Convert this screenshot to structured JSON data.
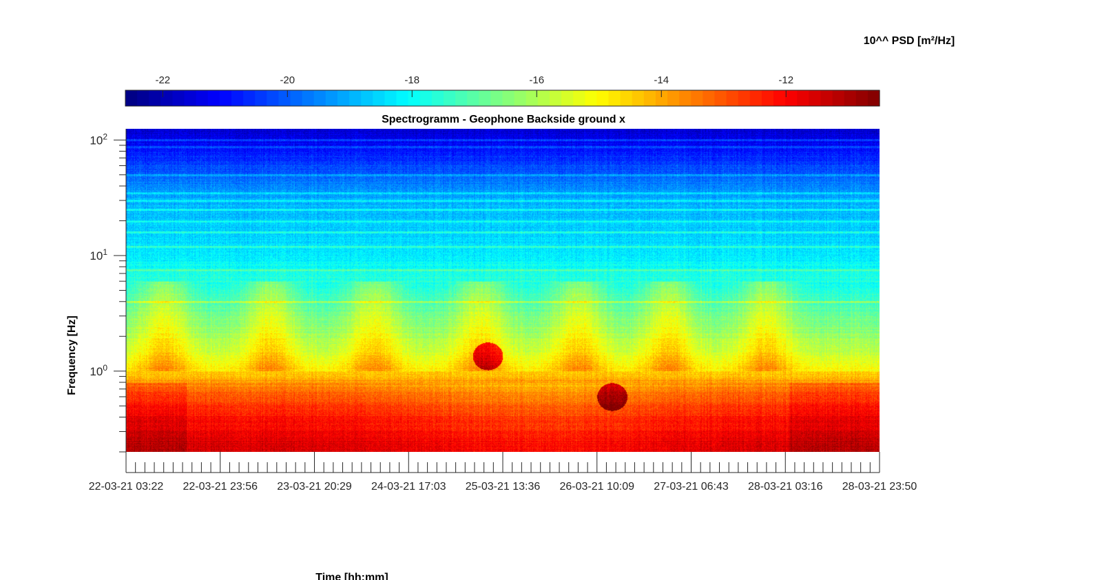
{
  "chart_data": {
    "type": "heatmap",
    "title": "Spectrogramm - Geophone Backside ground x",
    "xlabel": "Time [hh:mm]",
    "ylabel": "Frequency [Hz]",
    "colorbar_label": "10^^ PSD [m²/Hz]",
    "colormap": "jet",
    "clim": [
      -22.6,
      -10.5
    ],
    "colorbar_ticks": [
      -22,
      -20,
      -18,
      -16,
      -14,
      -12
    ],
    "ylim_hz": [
      0.2,
      125
    ],
    "yscale": "log",
    "y_ticks": [
      {
        "value": 1,
        "base": "10",
        "exp": "0"
      },
      {
        "value": 10,
        "base": "10",
        "exp": "1"
      },
      {
        "value": 100,
        "base": "10",
        "exp": "2"
      }
    ],
    "x_ticks": [
      "22-03-21 03:22",
      "22-03-21 23:56",
      "23-03-21 20:29",
      "24-03-21 17:03",
      "25-03-21 13:36",
      "26-03-21 10:09",
      "27-03-21 06:43",
      "28-03-21 03:16",
      "28-03-21 23:50"
    ],
    "x_minor_per_major": 10,
    "psd_profile": [
      {
        "freq_hz": 120,
        "log_psd": -21.6
      },
      {
        "freq_hz": 60,
        "log_psd": -20.3
      },
      {
        "freq_hz": 30,
        "log_psd": -19.0
      },
      {
        "freq_hz": 10,
        "log_psd": -18.3
      },
      {
        "freq_hz": 5,
        "log_psd": -17.3
      },
      {
        "freq_hz": 3,
        "log_psd": -16.5
      },
      {
        "freq_hz": 1.5,
        "log_psd": -15.5
      },
      {
        "freq_hz": 1.0,
        "log_psd": -14.6
      },
      {
        "freq_hz": 0.7,
        "log_psd": -13.3
      },
      {
        "freq_hz": 0.4,
        "log_psd": -12.2
      },
      {
        "freq_hz": 0.2,
        "log_psd": -11.4
      }
    ],
    "spectral_lines_hz": [
      100,
      88,
      50,
      35,
      30,
      25,
      20,
      16,
      12,
      7.5,
      4
    ],
    "daily_peaks_time_index": [
      0.05,
      0.19,
      0.33,
      0.47,
      0.6,
      0.72,
      0.85
    ],
    "events": [
      {
        "time_index": 0.48,
        "freq_hz": 1.35
      },
      {
        "time_index": 0.645,
        "freq_hz": 0.6
      }
    ]
  }
}
